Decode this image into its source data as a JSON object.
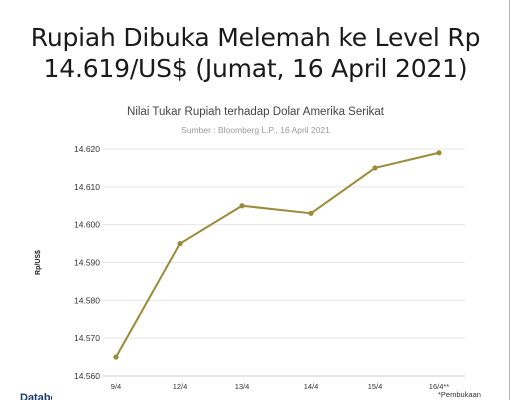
{
  "headline": {
    "line1": "Rupiah Dibuka Melemah ke Level Rp",
    "line2": "14.619/US$ (Jumat, 16 April 2021)"
  },
  "chart_data": {
    "type": "line",
    "title": "Nilai Tukar Rupiah terhadap Dolar Amerika Serikat",
    "subtitle": "Sumber : Bloomberg L.P., 16 April 2021",
    "ylabel": "Rp/US$",
    "xlabel": "",
    "categories": [
      "9/4",
      "12/4",
      "13/4",
      "14/4",
      "15/4",
      "16/4**"
    ],
    "series": [
      {
        "values": [
          14565,
          14595,
          14605,
          14603,
          14615,
          14619
        ]
      }
    ],
    "ylim": [
      14560,
      14620
    ],
    "yticks": [
      14560,
      14570,
      14580,
      14590,
      14600,
      14610,
      14620
    ],
    "ytick_labels": [
      "14.560",
      "14.570",
      "14.580",
      "14.590",
      "14.600",
      "14.610",
      "14.620"
    ],
    "grid": true,
    "line_color": "#9a8a3a",
    "footnote": "*Pembukaan"
  }
}
